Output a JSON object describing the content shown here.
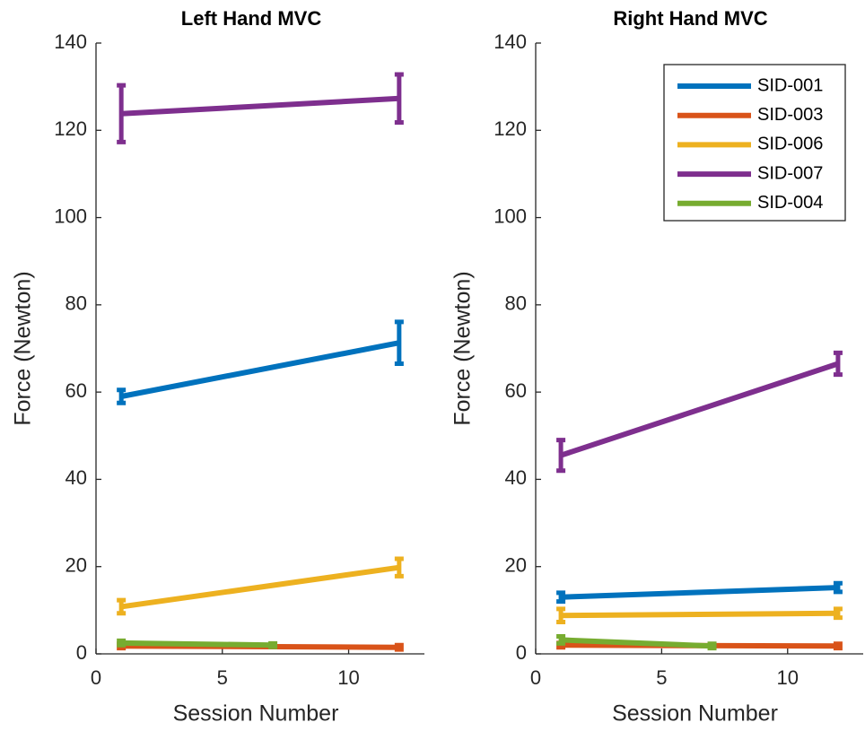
{
  "chart_data": [
    {
      "type": "line",
      "title": "Left Hand MVC",
      "xlabel": "Session Number",
      "ylabel": "Force (Newton)",
      "xlim": [
        0,
        13
      ],
      "xticks": [
        0,
        5,
        10
      ],
      "ylim": [
        0,
        140
      ],
      "yticks": [
        0,
        20,
        40,
        60,
        80,
        100,
        120,
        140
      ],
      "legend": false,
      "series": [
        {
          "name": "SID-001",
          "color": "#0072bd",
          "x": [
            1,
            12
          ],
          "values": [
            59,
            71.3
          ],
          "errors": [
            1.5,
            4.8
          ]
        },
        {
          "name": "SID-003",
          "color": "#d95319",
          "x": [
            1,
            12
          ],
          "values": [
            1.8,
            1.5
          ],
          "errors": [
            0.5,
            0.5
          ]
        },
        {
          "name": "SID-006",
          "color": "#edb120",
          "x": [
            1,
            12
          ],
          "values": [
            10.8,
            19.8
          ],
          "errors": [
            1.5,
            2
          ]
        },
        {
          "name": "SID-007",
          "color": "#7e2f8e",
          "x": [
            1,
            12
          ],
          "values": [
            123.8,
            127.3
          ],
          "errors": [
            6.5,
            5.5
          ]
        },
        {
          "name": "SID-004",
          "color": "#77ac30",
          "x": [
            1,
            7
          ],
          "values": [
            2.5,
            2
          ],
          "errors": [
            0.5,
            0.4
          ]
        }
      ]
    },
    {
      "type": "line",
      "title": "Right Hand MVC",
      "xlabel": "Session Number",
      "ylabel": "Force (Newton)",
      "xlim": [
        0,
        13
      ],
      "xticks": [
        0,
        5,
        10
      ],
      "ylim": [
        0,
        140
      ],
      "yticks": [
        0,
        20,
        40,
        60,
        80,
        100,
        120,
        140
      ],
      "legend": "upper right",
      "series": [
        {
          "name": "SID-001",
          "color": "#0072bd",
          "x": [
            1,
            12
          ],
          "values": [
            13,
            15.2
          ],
          "errors": [
            1,
            1
          ]
        },
        {
          "name": "SID-003",
          "color": "#d95319",
          "x": [
            1,
            12
          ],
          "values": [
            2,
            1.8
          ],
          "errors": [
            0.5,
            0.5
          ]
        },
        {
          "name": "SID-006",
          "color": "#edb120",
          "x": [
            1,
            12
          ],
          "values": [
            8.8,
            9.3
          ],
          "errors": [
            1.5,
            1
          ]
        },
        {
          "name": "SID-007",
          "color": "#7e2f8e",
          "x": [
            1,
            12
          ],
          "values": [
            45.5,
            66.5
          ],
          "errors": [
            3.5,
            2.5
          ]
        },
        {
          "name": "SID-004",
          "color": "#77ac30",
          "x": [
            1,
            7
          ],
          "values": [
            3.2,
            1.8
          ],
          "errors": [
            0.8,
            0.5
          ]
        }
      ]
    }
  ]
}
